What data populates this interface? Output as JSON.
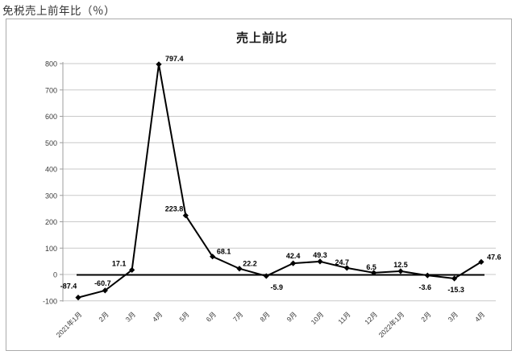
{
  "page": {
    "header": "免税売上前年比（％）"
  },
  "chart_data": {
    "type": "line",
    "title": "売上前比",
    "categories": [
      "2021年1月",
      "2月",
      "3月",
      "4月",
      "5月",
      "6月",
      "7月",
      "8月",
      "9月",
      "10月",
      "11月",
      "12月",
      "2022年1月",
      "2月",
      "3月",
      "4月"
    ],
    "series": [
      {
        "name": "売上前比",
        "values": [
          -87.4,
          -60.7,
          17.1,
          797.4,
          223.8,
          68.1,
          22.2,
          -5.9,
          42.4,
          49.3,
          24.7,
          6.5,
          12.5,
          -3.6,
          -15.3,
          47.6
        ]
      }
    ],
    "reference_line": {
      "value": 0
    },
    "data_labels": [
      "-87.4",
      "-60.7",
      "17.1",
      "797.4",
      "223.8",
      "68.1",
      "22.2",
      "-5.9",
      "42.4",
      "49.3",
      "24.7",
      "6.5",
      "12.5",
      "-3.6",
      "-15.3",
      "47.6"
    ],
    "ylim": [
      -100,
      800
    ],
    "yticks": [
      800,
      700,
      600,
      500,
      400,
      300,
      200,
      100,
      0,
      -100
    ],
    "xlabel": "",
    "ylabel": "",
    "grid": true,
    "legend": "none",
    "colors": {
      "series_line": "#000000",
      "marker": "#000000",
      "grid_line": "#c9c9c9",
      "axis_line": "#9e9e9e",
      "frame_border": "#ababab",
      "label_text": "#000000",
      "tick_text": "#3a3a3a"
    }
  }
}
